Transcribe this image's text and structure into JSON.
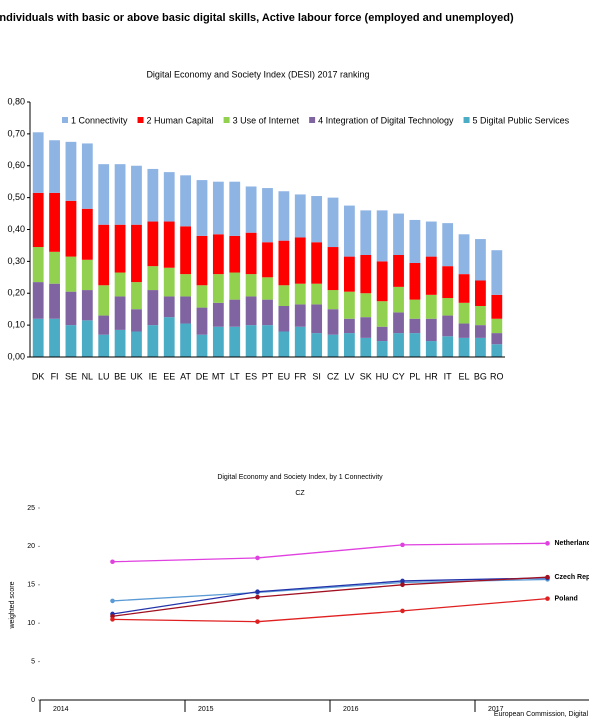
{
  "header": {
    "title": "Individuals with basic or above basic digital skills, Active labour force (employed and unemployed)"
  },
  "chart_data": [
    {
      "type": "bar",
      "stacked": true,
      "grid": false,
      "legend": "top",
      "title": "Digital Economy and Society Index (DESI) 2017 ranking",
      "categories": [
        "DK",
        "FI",
        "SE",
        "NL",
        "LU",
        "BE",
        "UK",
        "IE",
        "EE",
        "AT",
        "DE",
        "MT",
        "LT",
        "ES",
        "PT",
        "EU",
        "FR",
        "SI",
        "CZ",
        "LV",
        "SK",
        "HU",
        "CY",
        "PL",
        "HR",
        "IT",
        "EL",
        "BG",
        "RO"
      ],
      "series": [
        {
          "name": "1 Connectivity",
          "color": "#8eb4e3",
          "values": [
            0.19,
            0.165,
            0.185,
            0.205,
            0.19,
            0.19,
            0.185,
            0.165,
            0.155,
            0.16,
            0.175,
            0.165,
            0.17,
            0.145,
            0.17,
            0.155,
            0.135,
            0.145,
            0.155,
            0.16,
            0.14,
            0.16,
            0.13,
            0.135,
            0.11,
            0.135,
            0.125,
            0.13,
            0.14
          ]
        },
        {
          "name": "2 Human Capital",
          "color": "#ff0000",
          "values": [
            0.17,
            0.185,
            0.175,
            0.16,
            0.19,
            0.15,
            0.18,
            0.14,
            0.145,
            0.15,
            0.155,
            0.125,
            0.115,
            0.13,
            0.11,
            0.14,
            0.145,
            0.13,
            0.135,
            0.11,
            0.12,
            0.125,
            0.1,
            0.115,
            0.12,
            0.1,
            0.09,
            0.08,
            0.075
          ]
        },
        {
          "name": "3 Use of Internet",
          "color": "#92d050",
          "values": [
            0.11,
            0.1,
            0.11,
            0.095,
            0.095,
            0.075,
            0.085,
            0.075,
            0.09,
            0.07,
            0.07,
            0.09,
            0.085,
            0.07,
            0.07,
            0.065,
            0.065,
            0.065,
            0.06,
            0.085,
            0.075,
            0.08,
            0.08,
            0.06,
            0.075,
            0.055,
            0.065,
            0.06,
            0.045
          ]
        },
        {
          "name": "4 Integration of Digital Technology",
          "color": "#8064a2",
          "values": [
            0.115,
            0.11,
            0.105,
            0.095,
            0.06,
            0.105,
            0.07,
            0.11,
            0.065,
            0.085,
            0.085,
            0.075,
            0.085,
            0.09,
            0.08,
            0.08,
            0.07,
            0.09,
            0.08,
            0.045,
            0.065,
            0.045,
            0.065,
            0.045,
            0.07,
            0.065,
            0.045,
            0.04,
            0.035
          ]
        },
        {
          "name": "5 Digital Public Services",
          "color": "#4bacc6",
          "values": [
            0.12,
            0.12,
            0.1,
            0.115,
            0.07,
            0.085,
            0.08,
            0.1,
            0.125,
            0.105,
            0.07,
            0.095,
            0.095,
            0.1,
            0.1,
            0.08,
            0.095,
            0.075,
            0.07,
            0.075,
            0.06,
            0.05,
            0.075,
            0.075,
            0.05,
            0.065,
            0.06,
            0.06,
            0.04
          ]
        }
      ],
      "ylim": [
        0,
        0.8
      ],
      "yticks": [
        {
          "value": 0,
          "label": "0,00"
        },
        {
          "value": 0.1,
          "label": "0,10"
        },
        {
          "value": 0.2,
          "label": "0,20"
        },
        {
          "value": 0.3,
          "label": "0,30"
        },
        {
          "value": 0.4,
          "label": "0,40"
        },
        {
          "value": 0.5,
          "label": "0,50"
        },
        {
          "value": 0.6,
          "label": "0,60"
        },
        {
          "value": 0.7,
          "label": "0,70"
        },
        {
          "value": 0.8,
          "label": "0,80"
        }
      ]
    },
    {
      "type": "line",
      "grid": false,
      "title": "Digital Economy and Society Index, by 1 Connectivity",
      "subtitle": "CZ",
      "y_label": "weighted score",
      "source": "European Commission, Digital",
      "categories": [
        "2014",
        "2015",
        "2016",
        "2017"
      ],
      "series": [
        {
          "name": "Netherlands",
          "color": "#e040e0",
          "values": [
            18.0,
            18.5,
            20.2,
            20.4
          ]
        },
        {
          "color": "#5b9bd5",
          "values": [
            12.9,
            14.0,
            15.3,
            15.7
          ]
        },
        {
          "color": "#2233aa",
          "values": [
            11.2,
            14.1,
            15.5,
            15.9
          ]
        },
        {
          "name": "Czech Republic",
          "color": "#a01020",
          "values": [
            10.9,
            13.4,
            15.0,
            16.0
          ]
        },
        {
          "name": "Poland",
          "color": "#e02020",
          "values": [
            10.5,
            10.2,
            11.6,
            13.2
          ]
        }
      ],
      "ylim": [
        0,
        25
      ],
      "yticks": [
        0,
        5,
        10,
        15,
        20,
        25
      ]
    }
  ]
}
